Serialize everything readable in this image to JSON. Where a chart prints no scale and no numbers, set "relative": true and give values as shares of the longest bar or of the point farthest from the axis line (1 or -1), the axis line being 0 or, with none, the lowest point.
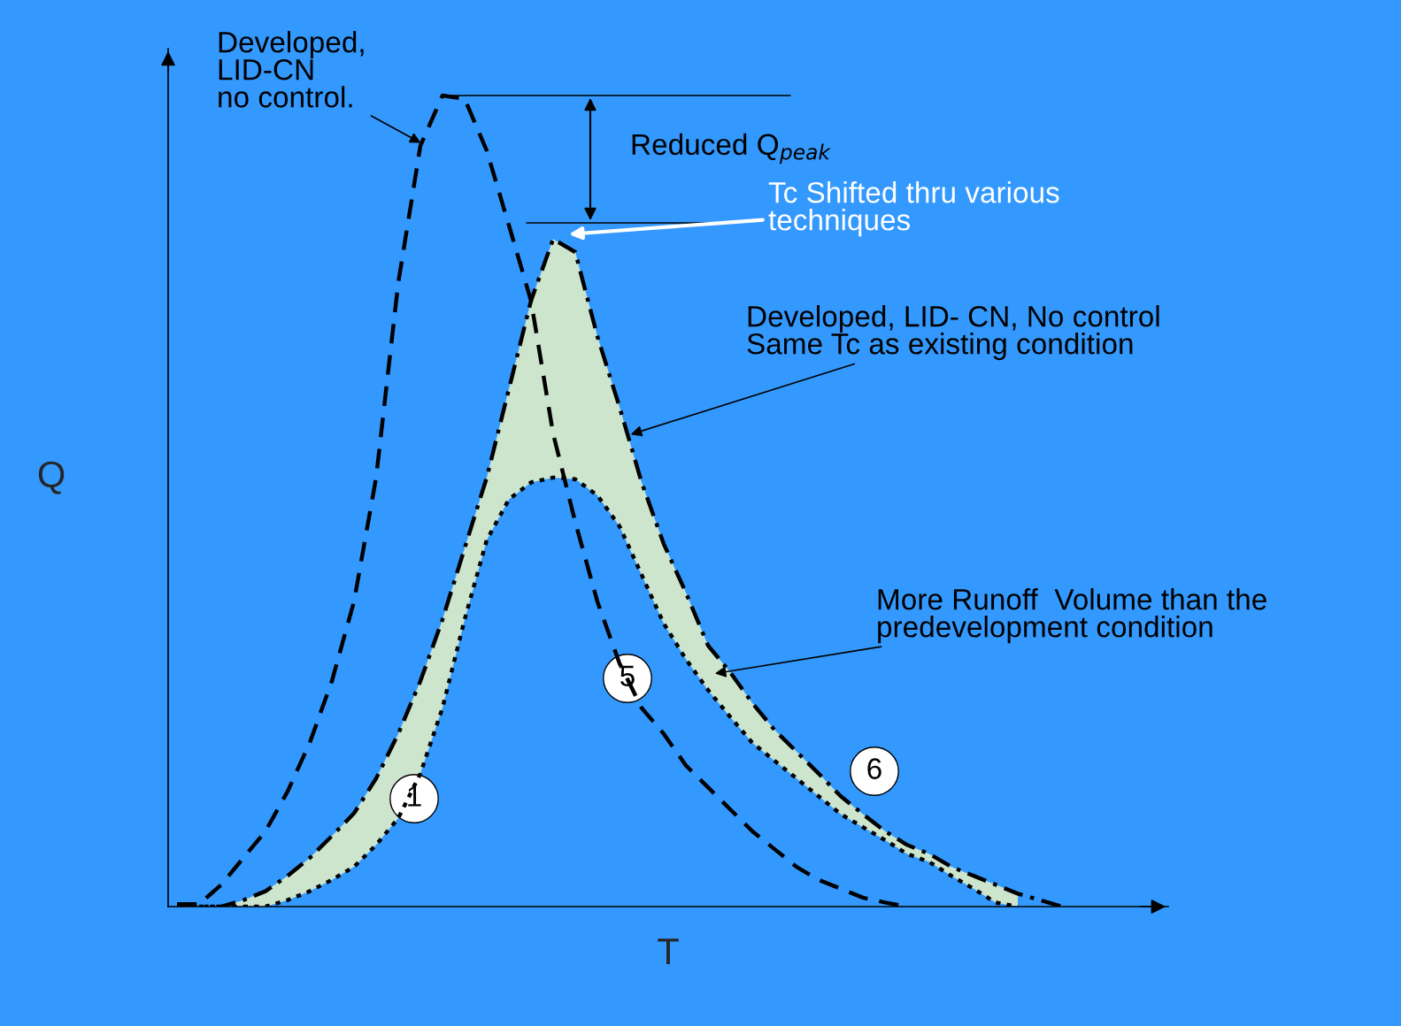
{
  "chart_data": {
    "type": "line",
    "relative": true,
    "xlabel": "T",
    "ylabel": "Q",
    "categories": [
      null,
      null,
      null,
      null,
      null,
      null,
      null,
      null,
      null,
      null,
      null,
      null,
      null,
      null,
      null,
      null,
      null,
      null,
      null,
      null,
      null,
      null,
      null,
      null,
      null,
      null,
      null,
      null,
      null,
      null,
      null,
      null,
      null,
      null,
      null,
      null,
      null,
      null,
      null,
      null,
      null
    ],
    "series": [
      {
        "color": "#000000",
        "line_style": "dashed",
        "values": [
          0.003,
          0.003,
          0.027,
          0.06,
          0.093,
          0.142,
          0.202,
          0.278,
          0.376,
          0.529,
          0.769,
          0.938,
          1.0,
          0.996,
          0.932,
          0.84,
          0.747,
          0.583,
          0.474,
          0.376,
          0.3,
          0.245,
          0.213,
          0.174,
          0.147,
          0.12,
          0.093,
          0.071,
          0.049,
          0.033,
          0.022,
          0.011,
          0.005,
          0,
          null,
          null,
          null,
          null,
          null,
          null,
          null
        ]
      },
      {
        "color": "#000000",
        "line_style": "dashdot",
        "values": [
          0,
          0,
          0,
          0.008,
          0.019,
          0.038,
          0.06,
          0.087,
          0.115,
          0.158,
          0.213,
          0.278,
          0.354,
          0.442,
          0.529,
          0.638,
          0.747,
          0.823,
          0.807,
          0.703,
          0.616,
          0.523,
          0.447,
          0.387,
          0.322,
          0.289,
          0.251,
          0.218,
          0.191,
          0.164,
          0.136,
          0.114,
          0.093,
          0.076,
          0.065,
          0.049,
          0.038,
          0.027,
          0.016,
          0.008,
          0
        ],
        "lower": [
          0,
          0,
          0,
          0,
          0,
          0.008,
          0.019,
          0.033,
          0.049,
          0.076,
          0.109,
          0.164,
          0.245,
          0.354,
          0.452,
          0.502,
          0.523,
          0.529,
          0.527,
          0.507,
          0.469,
          0.409,
          0.349,
          0.305,
          0.267,
          0.234,
          0.202,
          0.18,
          0.158,
          0.136,
          0.114,
          0.098,
          0.082,
          0.065,
          0.055,
          0.038,
          0.022,
          0.005,
          0,
          null,
          null
        ],
        "upper": [
          0,
          0,
          0,
          0.008,
          0.019,
          0.038,
          0.06,
          0.087,
          0.115,
          0.158,
          0.213,
          0.278,
          0.354,
          0.442,
          0.529,
          0.638,
          0.747,
          0.823,
          0.807,
          0.703,
          0.616,
          0.523,
          0.447,
          0.387,
          0.322,
          0.289,
          0.251,
          0.218,
          0.191,
          0.164,
          0.136,
          0.114,
          0.093,
          0.076,
          0.065,
          0.049,
          0.038,
          0.027,
          0.016,
          null,
          null
        ]
      },
      {
        "color": "#000000",
        "line_style": "dotted",
        "values": [
          0,
          0,
          0,
          0,
          0,
          0.008,
          0.019,
          0.033,
          0.049,
          0.076,
          0.109,
          0.164,
          0.245,
          0.354,
          0.452,
          0.502,
          0.523,
          0.529,
          0.527,
          0.507,
          0.469,
          0.409,
          0.349,
          0.305,
          0.267,
          0.234,
          0.202,
          0.18,
          0.158,
          0.136,
          0.114,
          0.098,
          0.082,
          0.065,
          0.055,
          0.038,
          0.022,
          0.005,
          0,
          null,
          null
        ]
      }
    ],
    "annotations": [
      "Developed,\nLID-CN\nno control.",
      "Reduced Q$_{peak}$",
      "Tc Shifted thru various\ntechniques",
      "Developed, LID- CN, No control\nSame Tc as existing condition",
      "More Runoff  Volume than the\npredevelopment condition",
      "1",
      "5",
      "6"
    ],
    "ref_lines": [
      {
        "axis": "y",
        "value": 1.0,
        "color": "#000000"
      },
      {
        "axis": "y",
        "value": 0.843,
        "color": "#000000"
      }
    ],
    "legend": false
  }
}
